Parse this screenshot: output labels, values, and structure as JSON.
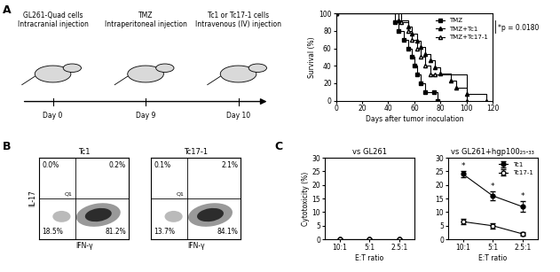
{
  "panel_labels": [
    "A",
    "B",
    "C"
  ],
  "schematic": {
    "steps": [
      {
        "text": "GL261-Quad cells\nIntracranial injection",
        "day": "Day 0"
      },
      {
        "text": "TMZ\nIntraperitoneal injection",
        "day": "Day 9"
      },
      {
        "text": "Tc1 or Tc17-1 cells\nIntravenous (IV) injection",
        "day": "Day 10"
      }
    ]
  },
  "flow_plots": [
    {
      "title": "Tc1",
      "x_label": "IFN-γ",
      "y_label": "IL-17",
      "gate": "Q1",
      "tick_labels": false,
      "quadrants": {
        "upper_left": "0.0%",
        "upper_right": "0.2%",
        "lower_left": "18.5%",
        "lower_right": "81.2%"
      }
    },
    {
      "title": "Tc17-1",
      "x_label": "IFN-γ",
      "gate": "Q1",
      "tick_labels": false,
      "quadrants": {
        "upper_left": "0.1%",
        "upper_right": "2.1%",
        "lower_left": "13.7%",
        "lower_right": "84.1%"
      }
    }
  ],
  "chart_data": [
    {
      "type": "step",
      "x_label": "Days after tumor inoculation",
      "y_label": "Survival (%)",
      "xlim": [
        0,
        120
      ],
      "xticks": [
        0,
        20,
        40,
        60,
        80,
        100,
        120
      ],
      "ylim": [
        0,
        100
      ],
      "yticks": [
        0,
        20,
        40,
        60,
        80,
        100
      ],
      "legend": "upper right",
      "annotations": [
        {
          "text": "*p = 0.0180"
        }
      ],
      "series": [
        {
          "name": "TMZ",
          "color": "#000000",
          "marker": "square",
          "x": [
            0,
            45,
            48,
            52,
            55,
            58,
            60,
            62,
            65,
            68,
            75,
            78
          ],
          "values": [
            100,
            90,
            80,
            70,
            60,
            50,
            40,
            30,
            20,
            10,
            10,
            0
          ]
        },
        {
          "name": "TMZ+Tc1",
          "color": "#000000",
          "marker": "triangle",
          "x": [
            0,
            48,
            55,
            58,
            62,
            65,
            68,
            72,
            76,
            80,
            88,
            92,
            100,
            115
          ],
          "values": [
            100,
            92,
            85,
            77,
            69,
            62,
            54,
            46,
            38,
            31,
            23,
            15,
            8,
            0
          ]
        },
        {
          "name": "TMZ+Tc17-1",
          "color": "#000000",
          "marker": "open_triangle",
          "x": [
            0,
            50,
            55,
            58,
            62,
            65,
            68,
            72,
            76,
            100
          ],
          "values": [
            100,
            90,
            80,
            70,
            60,
            50,
            40,
            30,
            30,
            0
          ]
        }
      ]
    },
    {
      "type": "line",
      "title": "vs GL261",
      "x_label": "E:T ratio",
      "y_label": "Cytotoxicity (%)",
      "categories": [
        "10:1",
        "5:1",
        "2.5:1"
      ],
      "ylim": [
        0,
        30
      ],
      "yticks": [
        0,
        5,
        10,
        15,
        20,
        25,
        30
      ],
      "series": [
        {
          "color": "#000000",
          "marker": "circle",
          "values": [
            0,
            0,
            0
          ]
        },
        {
          "color": "#000000",
          "marker": "open_circle",
          "values": [
            0,
            0,
            0
          ]
        }
      ]
    },
    {
      "type": "line",
      "title": "vs GL261+hgp100₂₅-₃₃",
      "x_label": "E:T ratio",
      "categories": [
        "10:1",
        "5:1",
        "2.5:1"
      ],
      "ylim": [
        0,
        30
      ],
      "yticks": [
        0,
        5,
        10,
        15,
        20,
        25,
        30
      ],
      "legend": "upper right",
      "annotations": [
        {
          "series": "Tc1",
          "category": "10:1",
          "text": "*"
        },
        {
          "series": "Tc1",
          "category": "5:1",
          "text": "*"
        },
        {
          "series": "Tc1",
          "category": "2.5:1",
          "text": "*"
        }
      ],
      "series": [
        {
          "name": "Tc1",
          "color": "#000000",
          "marker": "circle",
          "values": [
            24,
            16,
            12
          ],
          "errors": [
            1,
            1.5,
            2
          ]
        },
        {
          "name": "Tc17-1",
          "color": "#000000",
          "marker": "open_circle",
          "values": [
            6.5,
            5,
            2
          ],
          "errors": [
            1,
            1,
            0.5
          ]
        }
      ]
    }
  ]
}
